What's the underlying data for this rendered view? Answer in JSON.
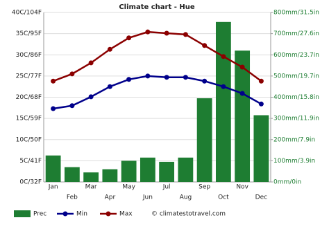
{
  "chart_data": {
    "type": "combo",
    "title": "Climate chart - Hue",
    "categories": [
      "Jan",
      "Feb",
      "Mar",
      "Apr",
      "May",
      "Jun",
      "Jul",
      "Aug",
      "Sep",
      "Oct",
      "Nov",
      "Dec"
    ],
    "series": [
      {
        "name": "Prec",
        "type": "bar",
        "axis": "y2",
        "color": "#1e7d32",
        "values": [
          125,
          70,
          45,
          60,
          100,
          115,
          95,
          115,
          395,
          755,
          620,
          315
        ]
      },
      {
        "name": "Min",
        "type": "line",
        "color": "#00008b",
        "values": [
          17.3,
          18.0,
          20.1,
          22.5,
          24.2,
          25.0,
          24.7,
          24.7,
          23.8,
          22.5,
          20.9,
          18.4
        ]
      },
      {
        "name": "Max",
        "type": "line",
        "color": "#8b0000",
        "values": [
          23.8,
          25.5,
          28.1,
          31.3,
          34.0,
          35.4,
          35.1,
          34.8,
          32.2,
          29.6,
          27.1,
          23.8
        ]
      }
    ],
    "ylim": [
      0,
      40
    ],
    "yticks": [
      {
        "value": 0,
        "label": "0C/32F"
      },
      {
        "value": 5,
        "label": "5C/41F"
      },
      {
        "value": 10,
        "label": "10C/50F"
      },
      {
        "value": 15,
        "label": "15C/59F"
      },
      {
        "value": 20,
        "label": "20C/68F"
      },
      {
        "value": 25,
        "label": "25C/77F"
      },
      {
        "value": 30,
        "label": "30C/86F"
      },
      {
        "value": 35,
        "label": "35C/95F"
      },
      {
        "value": 40,
        "label": "40C/104F"
      }
    ],
    "y2lim": [
      0,
      800
    ],
    "y2ticks": [
      {
        "value": 0,
        "label": "0mm/0in"
      },
      {
        "value": 100,
        "label": "100mm/3.9in"
      },
      {
        "value": 200,
        "label": "200mm/7.9in"
      },
      {
        "value": 300,
        "label": "300mm/11.9in"
      },
      {
        "value": 400,
        "label": "400mm/15.8in"
      },
      {
        "value": 500,
        "label": "500mm/19.7in"
      },
      {
        "value": 600,
        "label": "600mm/23.7in"
      },
      {
        "value": 700,
        "label": "700mm/27.6in"
      },
      {
        "value": 800,
        "label": "800mm/31.5in"
      }
    ],
    "grid": true,
    "source": "© climatestotravel.com"
  }
}
